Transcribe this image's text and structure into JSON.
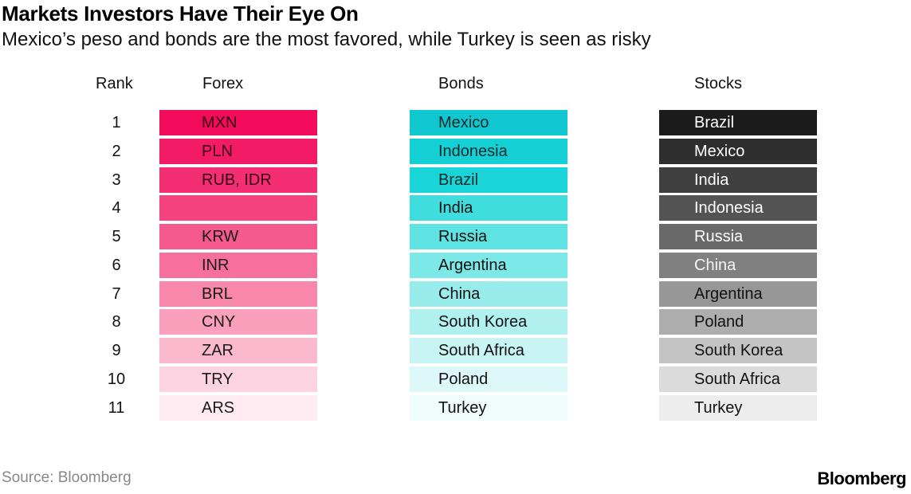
{
  "title": "Markets Investors Have Their Eye On",
  "subtitle": "Mexico’s peso and bonds are the most favored, while Turkey is seen as risky",
  "source": "Source: Bloomberg",
  "brand": "Bloomberg",
  "chart_data": {
    "type": "table",
    "columns": [
      "Rank",
      "Forex",
      "Bonds",
      "Stocks"
    ],
    "rows": [
      {
        "rank": "1",
        "forex": "MXN",
        "bonds": "Mexico",
        "stocks": "Brazil"
      },
      {
        "rank": "2",
        "forex": "PLN",
        "bonds": "Indonesia",
        "stocks": "Mexico"
      },
      {
        "rank": "3",
        "forex": "RUB, IDR",
        "bonds": "Brazil",
        "stocks": "India"
      },
      {
        "rank": "4",
        "forex": "",
        "bonds": "India",
        "stocks": "Indonesia"
      },
      {
        "rank": "5",
        "forex": "KRW",
        "bonds": "Russia",
        "stocks": "Russia"
      },
      {
        "rank": "6",
        "forex": "INR",
        "bonds": "Argentina",
        "stocks": "China"
      },
      {
        "rank": "7",
        "forex": "BRL",
        "bonds": "China",
        "stocks": "Argentina"
      },
      {
        "rank": "8",
        "forex": "CNY",
        "bonds": "South Korea",
        "stocks": "Poland"
      },
      {
        "rank": "9",
        "forex": "ZAR",
        "bonds": "South Africa",
        "stocks": "South Korea"
      },
      {
        "rank": "10",
        "forex": "TRY",
        "bonds": "Poland",
        "stocks": "South Africa"
      },
      {
        "rank": "11",
        "forex": "ARS",
        "bonds": "Turkey",
        "stocks": "Turkey"
      }
    ],
    "colors": {
      "forex": [
        "#f20a5b",
        "#f31a66",
        "#f42e72",
        "#f5437f",
        "#f6598d",
        "#f76f9c",
        "#f887ab",
        "#faa0bc",
        "#fbb9ce",
        "#fcd3e0",
        "#fdebf1"
      ],
      "bonds": [
        "#11c7cf",
        "#14d0d5",
        "#1ad5d7",
        "#3fdddd",
        "#5ee3e2",
        "#7ce8e7",
        "#98ecec",
        "#b0f1f0",
        "#c8f4f4",
        "#ddf8f8",
        "#f0fcfc"
      ],
      "stocks": [
        "#1b1b1b",
        "#2e2e2e",
        "#3f3f3f",
        "#535353",
        "#696969",
        "#808080",
        "#979797",
        "#adadad",
        "#c4c4c4",
        "#dbdbdb",
        "#ededed"
      ]
    },
    "text_colors": {
      "forex": [
        "#3a0012",
        "#3a0012",
        "#3a0012",
        "#3a0012",
        "#1a1a1a",
        "#1a1a1a",
        "#1a1a1a",
        "#1a1a1a",
        "#1a1a1a",
        "#1a1a1a",
        "#1a1a1a"
      ],
      "bonds": [
        "#0d2a2b",
        "#0d2a2b",
        "#0d2a2b",
        "#111111",
        "#111111",
        "#111111",
        "#111111",
        "#111111",
        "#111111",
        "#111111",
        "#111111"
      ],
      "stocks": [
        "#ffffff",
        "#ffffff",
        "#ffffff",
        "#ffffff",
        "#ffffff",
        "#f4f4f4",
        "#111111",
        "#111111",
        "#111111",
        "#111111",
        "#111111"
      ]
    }
  }
}
